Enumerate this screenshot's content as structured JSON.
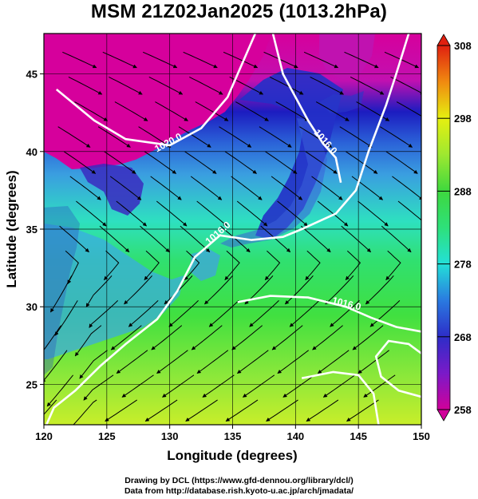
{
  "title": "MSM 21Z02Jan2025 (1013.2hPa)",
  "credits": [
    "Drawing by DCL (https://www.gfd-dennou.org/library/dcl/)",
    "Data from http://database.rish.kyoto-u.ac.jp/arch/jmadata/"
  ],
  "chart_data": {
    "type": "map",
    "xlabel": "Longitude (degrees)",
    "ylabel": "Latitude  (degrees)",
    "xlim": [
      120,
      150
    ],
    "ylim": [
      22.4,
      47.6
    ],
    "x_ticks": [
      120,
      125,
      130,
      135,
      140,
      145,
      150
    ],
    "y_ticks": [
      25,
      30,
      35,
      40,
      45
    ],
    "colorbar": {
      "min": 258,
      "max": 308,
      "ticks": [
        258,
        268,
        278,
        288,
        298,
        308
      ],
      "extend": "both",
      "colors": [
        "#d1009a",
        "#2d2dc8",
        "#23e0d8",
        "#3ed83e",
        "#e6f010",
        "#e02010"
      ]
    },
    "isobars": [
      {
        "label": "1020.0",
        "points": [
          [
            121,
            44
          ],
          [
            124,
            42
          ],
          [
            126.5,
            40.8
          ],
          [
            130,
            40.4
          ],
          [
            132.5,
            41.5
          ],
          [
            134.6,
            43.5
          ],
          [
            136.8,
            47.6
          ]
        ]
      },
      {
        "label": "1016.0",
        "points": [
          [
            138.2,
            47.6
          ],
          [
            139,
            45
          ],
          [
            141,
            42
          ],
          [
            142.2,
            40.5
          ],
          [
            143.2,
            39.6
          ],
          [
            143.6,
            38
          ]
        ]
      },
      {
        "label": "1016.0",
        "points": [
          [
            149,
            47.6
          ],
          [
            148,
            45
          ],
          [
            147.2,
            43
          ],
          [
            145.8,
            40
          ],
          [
            144.8,
            37.5
          ],
          [
            143.2,
            36
          ],
          [
            140.5,
            35
          ],
          [
            139,
            34.5
          ],
          [
            136.5,
            34.3
          ],
          [
            134,
            34.6
          ],
          [
            132,
            33.2
          ],
          [
            130.6,
            31
          ],
          [
            129,
            29.2
          ],
          [
            126.5,
            27.6
          ],
          [
            124.5,
            26.2
          ],
          [
            122.5,
            24.6
          ],
          [
            120.8,
            23.5
          ],
          [
            120.2,
            22.4
          ]
        ]
      },
      {
        "label": "1016.0",
        "points": [
          [
            150,
            28.4
          ],
          [
            148,
            28.7
          ],
          [
            146,
            29.3
          ],
          [
            144,
            30
          ],
          [
            141,
            30.6
          ],
          [
            138,
            30.7
          ],
          [
            135.4,
            30.3
          ]
        ]
      },
      {
        "label": "",
        "points": [
          [
            150,
            24.2
          ],
          [
            148.2,
            24.6
          ],
          [
            146.8,
            25.5
          ],
          [
            146.4,
            26.8
          ],
          [
            147.4,
            27.8
          ],
          [
            149,
            27.6
          ],
          [
            150,
            27
          ]
        ]
      },
      {
        "label": "",
        "points": [
          [
            140.5,
            25.4
          ],
          [
            143,
            25.8
          ],
          [
            145,
            25.6
          ],
          [
            146.2,
            24.4
          ],
          [
            146.6,
            22.4
          ]
        ]
      }
    ]
  }
}
